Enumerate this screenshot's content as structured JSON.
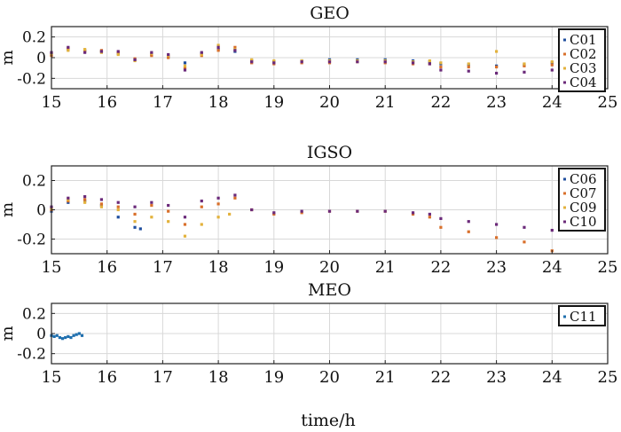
{
  "figure": {
    "xlabel": "time/h"
  },
  "chart_data": [
    {
      "type": "scatter",
      "title": "GEO",
      "xlabel": "",
      "ylabel": "m",
      "xlim": [
        15,
        25
      ],
      "ylim": [
        -0.3,
        0.3
      ],
      "xticks": [
        "15",
        "16",
        "17",
        "18",
        "19",
        "20",
        "21",
        "22",
        "23",
        "24",
        "25"
      ],
      "yticks": [
        "0.2",
        "0",
        "-0.2"
      ],
      "grid": true,
      "legend_position": "right",
      "series": [
        {
          "name": "C01",
          "color": "#1f4e9e",
          "points": [
            [
              15.0,
              0.03
            ],
            [
              15.3,
              0.08
            ],
            [
              15.6,
              0.07
            ],
            [
              15.9,
              0.06
            ],
            [
              16.2,
              0.04
            ],
            [
              16.5,
              -0.02
            ],
            [
              16.8,
              0.03
            ],
            [
              17.1,
              0.01
            ],
            [
              17.4,
              -0.05
            ],
            [
              17.7,
              0.04
            ],
            [
              18.0,
              0.08
            ],
            [
              18.3,
              0.06
            ],
            [
              18.6,
              -0.03
            ],
            [
              19.0,
              -0.04
            ],
            [
              19.5,
              -0.03
            ],
            [
              20.0,
              -0.02
            ],
            [
              20.5,
              -0.02
            ],
            [
              21.0,
              -0.02
            ],
            [
              21.5,
              -0.03
            ],
            [
              21.8,
              -0.04
            ],
            [
              22.0,
              -0.06
            ],
            [
              22.5,
              -0.07
            ],
            [
              23.0,
              -0.08
            ],
            [
              23.5,
              -0.07
            ],
            [
              24.0,
              -0.05
            ]
          ]
        },
        {
          "name": "C02",
          "color": "#d9702b",
          "points": [
            [
              15.0,
              0.02
            ],
            [
              15.3,
              0.09
            ],
            [
              15.6,
              0.06
            ],
            [
              15.9,
              0.07
            ],
            [
              16.2,
              0.05
            ],
            [
              16.5,
              -0.01
            ],
            [
              16.8,
              0.02
            ],
            [
              17.1,
              0.0
            ],
            [
              17.4,
              -0.1
            ],
            [
              17.7,
              0.02
            ],
            [
              18.0,
              0.07
            ],
            [
              18.3,
              0.1
            ],
            [
              18.6,
              -0.05
            ],
            [
              19.0,
              -0.06
            ],
            [
              19.5,
              -0.05
            ],
            [
              20.0,
              -0.05
            ],
            [
              20.5,
              -0.04
            ],
            [
              21.0,
              -0.05
            ],
            [
              21.5,
              -0.06
            ],
            [
              21.8,
              -0.06
            ],
            [
              22.0,
              -0.09
            ],
            [
              22.5,
              -0.09
            ],
            [
              23.0,
              -0.09
            ],
            [
              23.5,
              -0.08
            ],
            [
              24.0,
              -0.07
            ]
          ]
        },
        {
          "name": "C03",
          "color": "#e3b23c",
          "points": [
            [
              15.0,
              0.04
            ],
            [
              15.3,
              0.07
            ],
            [
              15.6,
              0.08
            ],
            [
              15.9,
              0.05
            ],
            [
              16.2,
              0.03
            ],
            [
              16.5,
              -0.03
            ],
            [
              16.8,
              0.04
            ],
            [
              17.1,
              0.02
            ],
            [
              17.4,
              -0.08
            ],
            [
              17.7,
              0.03
            ],
            [
              18.0,
              0.12
            ],
            [
              18.3,
              0.08
            ],
            [
              18.6,
              -0.02
            ],
            [
              19.0,
              -0.03
            ],
            [
              19.5,
              -0.03
            ],
            [
              20.0,
              -0.03
            ],
            [
              20.5,
              -0.03
            ],
            [
              21.0,
              -0.03
            ],
            [
              21.5,
              -0.04
            ],
            [
              21.8,
              -0.03
            ],
            [
              22.0,
              -0.05
            ],
            [
              22.5,
              -0.06
            ],
            [
              23.0,
              0.06
            ],
            [
              23.5,
              -0.06
            ],
            [
              24.0,
              -0.04
            ]
          ]
        },
        {
          "name": "C04",
          "color": "#6b2a7a",
          "points": [
            [
              15.0,
              0.05
            ],
            [
              15.3,
              0.1
            ],
            [
              15.6,
              0.05
            ],
            [
              15.9,
              0.06
            ],
            [
              16.2,
              0.06
            ],
            [
              16.5,
              -0.02
            ],
            [
              16.8,
              0.05
            ],
            [
              17.1,
              0.03
            ],
            [
              17.4,
              -0.12
            ],
            [
              17.7,
              0.05
            ],
            [
              18.0,
              0.1
            ],
            [
              18.3,
              0.07
            ],
            [
              18.6,
              -0.04
            ],
            [
              19.0,
              -0.05
            ],
            [
              19.5,
              -0.04
            ],
            [
              20.0,
              -0.04
            ],
            [
              20.5,
              -0.04
            ],
            [
              21.0,
              -0.04
            ],
            [
              21.5,
              -0.05
            ],
            [
              21.8,
              -0.06
            ],
            [
              22.0,
              -0.12
            ],
            [
              22.5,
              -0.13
            ],
            [
              23.0,
              -0.15
            ],
            [
              23.5,
              -0.14
            ],
            [
              24.0,
              -0.12
            ]
          ]
        }
      ]
    },
    {
      "type": "scatter",
      "title": "IGSO",
      "xlabel": "",
      "ylabel": "m",
      "xlim": [
        15,
        25
      ],
      "ylim": [
        -0.3,
        0.3
      ],
      "xticks": [
        "15",
        "16",
        "17",
        "18",
        "19",
        "20",
        "21",
        "22",
        "23",
        "24",
        "25"
      ],
      "yticks": [
        "0.2",
        "0",
        "-0.2"
      ],
      "grid": true,
      "legend_position": "right",
      "series": [
        {
          "name": "C06",
          "color": "#1f4e9e",
          "points": [
            [
              15.0,
              -0.01
            ],
            [
              15.3,
              0.05
            ],
            [
              15.6,
              0.06
            ],
            [
              15.9,
              0.03
            ],
            [
              16.2,
              -0.05
            ],
            [
              16.5,
              -0.12
            ],
            [
              16.6,
              -0.13
            ]
          ]
        },
        {
          "name": "C07",
          "color": "#d9702b",
          "points": [
            [
              15.0,
              0.0
            ],
            [
              15.3,
              0.06
            ],
            [
              15.6,
              0.07
            ],
            [
              15.9,
              0.04
            ],
            [
              16.2,
              0.02
            ],
            [
              16.5,
              -0.03
            ],
            [
              16.8,
              0.03
            ],
            [
              17.1,
              -0.01
            ],
            [
              17.4,
              -0.1
            ],
            [
              17.7,
              0.02
            ],
            [
              18.0,
              0.04
            ],
            [
              18.3,
              0.08
            ],
            [
              18.6,
              0.0
            ],
            [
              19.0,
              -0.03
            ],
            [
              19.5,
              -0.02
            ],
            [
              20.0,
              -0.01
            ],
            [
              20.5,
              -0.01
            ],
            [
              21.0,
              -0.01
            ],
            [
              21.5,
              -0.03
            ],
            [
              21.8,
              -0.05
            ],
            [
              22.0,
              -0.12
            ],
            [
              22.5,
              -0.15
            ],
            [
              23.0,
              -0.19
            ],
            [
              23.5,
              -0.22
            ],
            [
              24.0,
              -0.28
            ]
          ]
        },
        {
          "name": "C09",
          "color": "#e3b23c",
          "points": [
            [
              15.0,
              0.01
            ],
            [
              15.3,
              0.07
            ],
            [
              15.6,
              0.05
            ],
            [
              15.9,
              0.02
            ],
            [
              16.2,
              0.0
            ],
            [
              16.5,
              -0.08
            ],
            [
              16.8,
              -0.05
            ],
            [
              17.1,
              -0.08
            ],
            [
              17.4,
              -0.18
            ],
            [
              17.7,
              -0.1
            ],
            [
              18.0,
              -0.05
            ],
            [
              18.2,
              -0.03
            ]
          ]
        },
        {
          "name": "C10",
          "color": "#6b2a7a",
          "points": [
            [
              15.0,
              0.02
            ],
            [
              15.3,
              0.08
            ],
            [
              15.6,
              0.09
            ],
            [
              15.9,
              0.07
            ],
            [
              16.2,
              0.05
            ],
            [
              16.5,
              0.02
            ],
            [
              16.8,
              0.05
            ],
            [
              17.1,
              0.03
            ],
            [
              17.4,
              -0.05
            ],
            [
              17.7,
              0.06
            ],
            [
              18.0,
              0.08
            ],
            [
              18.3,
              0.1
            ],
            [
              18.6,
              0.0
            ],
            [
              19.0,
              -0.02
            ],
            [
              19.5,
              -0.01
            ],
            [
              20.0,
              -0.01
            ],
            [
              20.5,
              -0.01
            ],
            [
              21.0,
              -0.01
            ],
            [
              21.5,
              -0.02
            ],
            [
              21.8,
              -0.03
            ],
            [
              22.0,
              -0.06
            ],
            [
              22.5,
              -0.08
            ],
            [
              23.0,
              -0.1
            ],
            [
              23.5,
              -0.12
            ],
            [
              24.0,
              -0.14
            ]
          ]
        }
      ]
    },
    {
      "type": "scatter",
      "title": "MEO",
      "xlabel": "",
      "ylabel": "m",
      "xlim": [
        15,
        25
      ],
      "ylim": [
        -0.3,
        0.3
      ],
      "xticks": [
        "15",
        "16",
        "17",
        "18",
        "19",
        "20",
        "21",
        "22",
        "23",
        "24",
        "25"
      ],
      "yticks": [
        "0.2",
        "0",
        "-0.2"
      ],
      "grid": true,
      "legend_position": "right",
      "series": [
        {
          "name": "C11",
          "color": "#1f6fae",
          "points": [
            [
              15.0,
              -0.02
            ],
            [
              15.05,
              -0.03
            ],
            [
              15.1,
              -0.02
            ],
            [
              15.15,
              -0.04
            ],
            [
              15.2,
              -0.05
            ],
            [
              15.25,
              -0.04
            ],
            [
              15.3,
              -0.03
            ],
            [
              15.35,
              -0.04
            ],
            [
              15.4,
              -0.02
            ],
            [
              15.45,
              -0.01
            ],
            [
              15.5,
              0.0
            ],
            [
              15.55,
              -0.02
            ]
          ]
        }
      ]
    }
  ]
}
